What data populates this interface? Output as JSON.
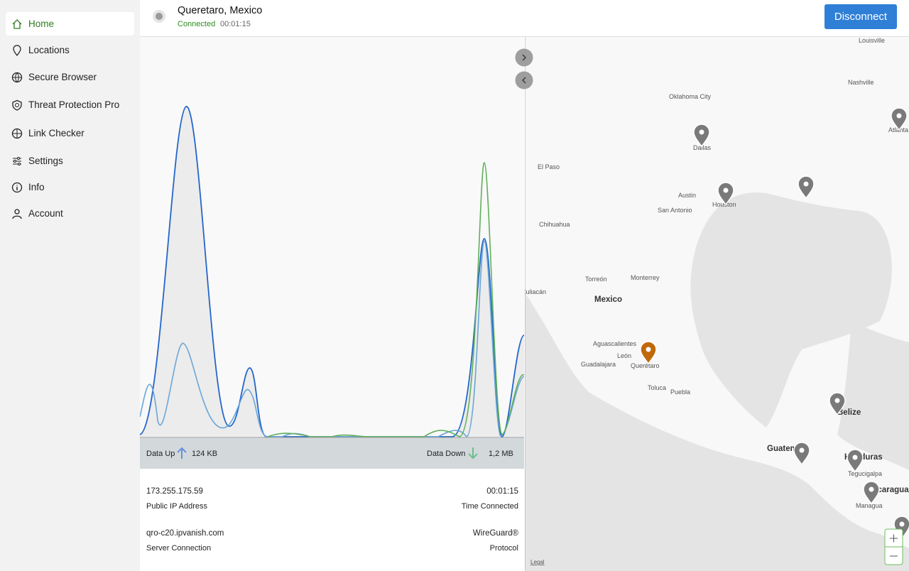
{
  "sidebar": {
    "items": [
      "Home",
      "Locations",
      "Secure Browser",
      "Threat Protection Pro",
      "Link Checker",
      "Settings",
      "Info",
      "Account"
    ],
    "active": 0
  },
  "header": {
    "location": "Queretaro, Mexico",
    "status": "Connected",
    "time": "00:01:15",
    "button": "Disconnect"
  },
  "stats": {
    "up_label": "Data Up",
    "up_value": "124 KB",
    "down_label": "Data Down",
    "down_value": "1,2 MB"
  },
  "details": [
    {
      "value": "173.255.175.59",
      "label": "Public IP Address"
    },
    {
      "value": "00:01:15",
      "label": "Time Connected"
    },
    {
      "value": "qro-c20.ipvanish.com",
      "label": "Server Connection"
    },
    {
      "value": "WireGuard®",
      "label": "Protocol"
    }
  ],
  "map": {
    "labels": [
      "Louisville",
      "Nashville",
      "Oklahoma City",
      "Dallas",
      "Atlanta",
      "El Paso",
      "Austin",
      "Houston",
      "San Antonio",
      "Chihuahua",
      "Torreón",
      "Monterrey",
      "Culiacán",
      "Mexico",
      "Aguascalientes",
      "León",
      "Guadalajara",
      "Querétaro",
      "Toluca",
      "Puebla",
      "Belize",
      "Guatemala",
      "Honduras",
      "Tegucigalpa",
      "Nicaragua",
      "Managua"
    ],
    "legal": "Legal"
  }
}
